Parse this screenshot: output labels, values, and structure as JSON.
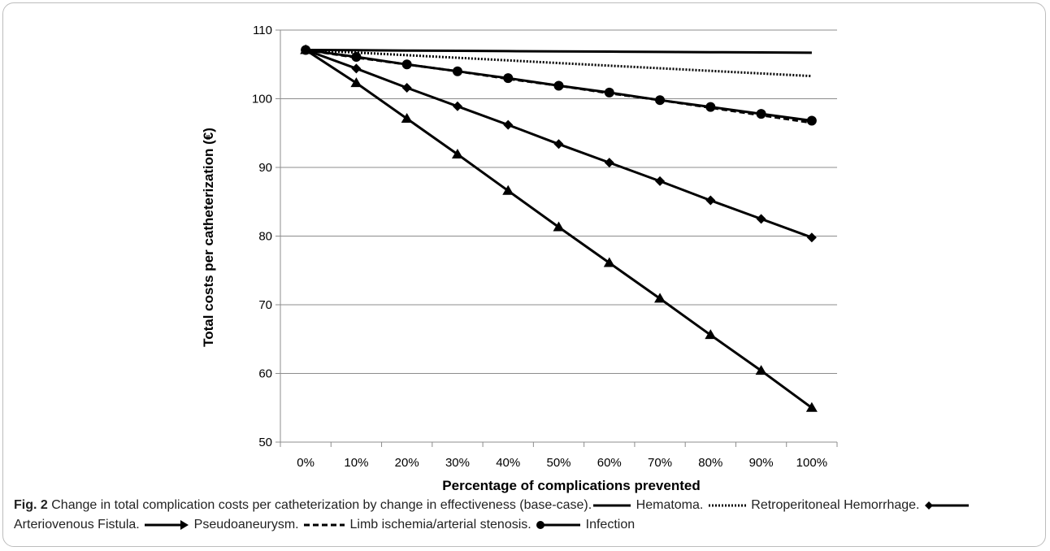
{
  "chart_data": {
    "type": "line",
    "xlabel": "Percentage of complications prevented",
    "ylabel": "Total costs per catheterization (€)",
    "categories": [
      "0%",
      "10%",
      "20%",
      "30%",
      "40%",
      "50%",
      "60%",
      "70%",
      "80%",
      "90%",
      "100%"
    ],
    "ylim": [
      50,
      110
    ],
    "yticks": [
      50,
      60,
      70,
      80,
      90,
      100,
      110
    ],
    "grid": true,
    "series": [
      {
        "name": "Hematoma",
        "line": "solid",
        "marker": "none",
        "values": [
          107.1,
          107.06,
          107.02,
          106.98,
          106.94,
          106.9,
          106.86,
          106.82,
          106.78,
          106.74,
          106.7
        ]
      },
      {
        "name": "Retroperitoneal Hemorrhage",
        "line": "dotted",
        "marker": "none",
        "values": [
          107.1,
          106.72,
          106.34,
          105.96,
          105.58,
          105.2,
          104.82,
          104.44,
          104.06,
          103.68,
          103.3
        ]
      },
      {
        "name": "Arteriovenous Fistula",
        "line": "solid",
        "marker": "diamond",
        "values": [
          107.1,
          104.4,
          101.6,
          98.9,
          96.2,
          93.4,
          90.7,
          88.0,
          85.2,
          82.5,
          79.8
        ]
      },
      {
        "name": "Pseudoaneurysm",
        "line": "solid",
        "marker": "triangle",
        "values": [
          107.1,
          102.3,
          97.1,
          91.9,
          86.6,
          81.3,
          76.1,
          70.9,
          65.6,
          60.4,
          55.0
        ]
      },
      {
        "name": "Limb ischemia/arterial stenosis",
        "line": "dashed",
        "marker": "none",
        "values": [
          107.1,
          106.0,
          105.0,
          104.0,
          102.9,
          101.9,
          100.8,
          99.8,
          98.7,
          97.6,
          96.5
        ]
      },
      {
        "name": "Infection",
        "line": "solid",
        "marker": "circle",
        "values": [
          107.1,
          106.1,
          105.0,
          104.0,
          103.0,
          101.9,
          100.9,
          99.8,
          98.8,
          97.8,
          96.8
        ]
      }
    ]
  },
  "caption": {
    "figure_label": "Fig. 2",
    "text": "Change in total complication costs per catheterization by change in effectiveness (base-case).",
    "legend": [
      {
        "name": "Hematoma.",
        "style": "solid-line"
      },
      {
        "name": "Retroperitoneal Hemorrhage.",
        "style": "dotted-line"
      },
      {
        "name": "Arteriovenous Fistula.",
        "style": "diamond-line"
      },
      {
        "name": "Pseudoaneurysm.",
        "style": "arrow-line"
      },
      {
        "name": "Limb ischemia/arterial stenosis.",
        "style": "dashed-line"
      },
      {
        "name": "Infection",
        "style": "circle-line"
      }
    ]
  }
}
